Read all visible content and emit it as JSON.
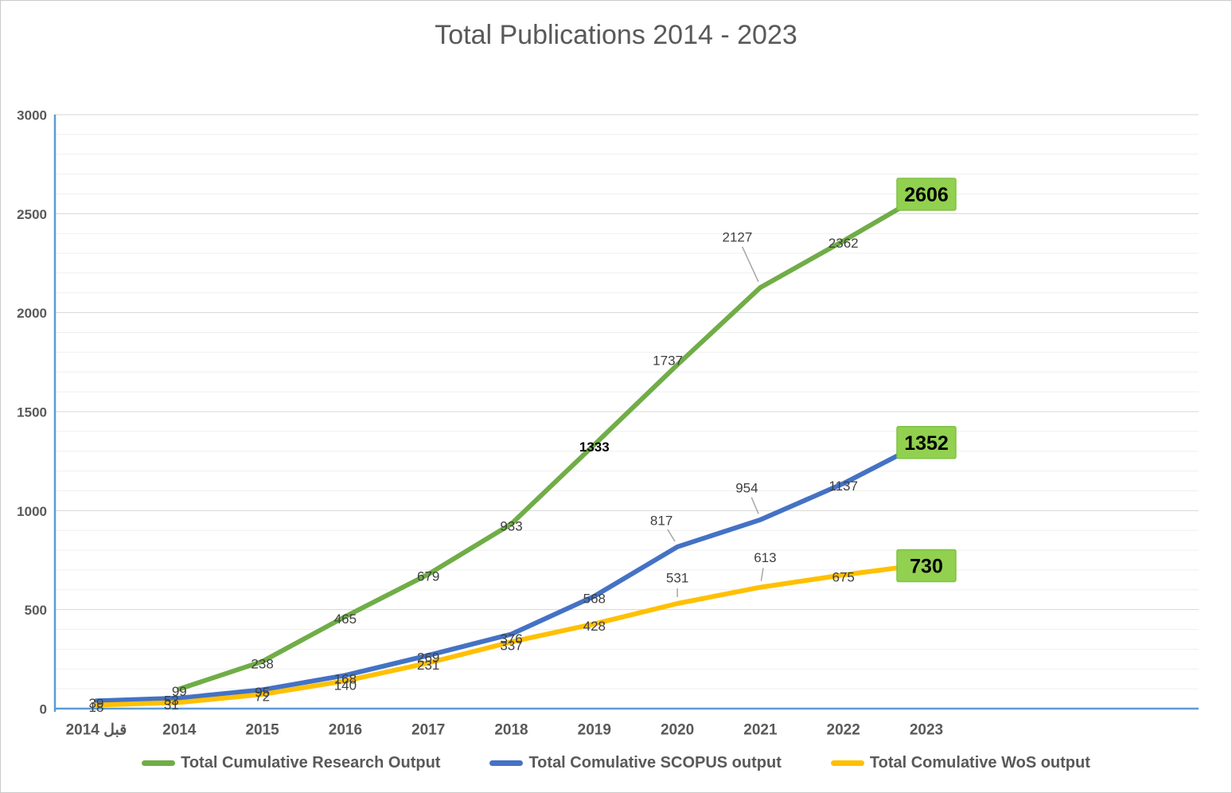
{
  "title": "Total Publications 2014 - 2023",
  "colors": {
    "title_text": "#595959",
    "axis_line": "#5B9BD5",
    "axis_text": "#595959",
    "label_text": "#404040",
    "grid_minor": "#EFEFEF",
    "grid_major": "#D7D7D7",
    "leader_line": "#A6A6A6",
    "callout_fill": "#92D050",
    "callout_border": "#7EC242",
    "callout_text": "#000000",
    "background": "#FFFFFF",
    "border": "#C9C9C9"
  },
  "chart_data": {
    "type": "line",
    "title": "Total Publications 2014 - 2023",
    "categories": [
      "قبل 2014",
      "2014",
      "2015",
      "2016",
      "2017",
      "2018",
      "2019",
      "2020",
      "2021",
      "2022",
      "2023"
    ],
    "ylim": [
      0,
      3000
    ],
    "yticks": [
      0,
      500,
      1000,
      1500,
      2000,
      2500,
      3000
    ],
    "minor_grid_step": 100,
    "grid": true,
    "legend_position": "bottom",
    "series": [
      {
        "name": "Total Cumulative Research Output",
        "color": "#70AD47",
        "values": [
          null,
          99,
          238,
          465,
          679,
          933,
          1333,
          1737,
          2127,
          2362,
          2606
        ],
        "labels": [
          null,
          {},
          {},
          {},
          {},
          {},
          {
            "bold": true
          },
          {
            "dx": -12,
            "dy": -5
          },
          {
            "dx": -29,
            "dy": -63,
            "leader": true
          },
          {},
          {
            "boxed": true
          }
        ]
      },
      {
        "name": "Total Comulative SCOPUS output",
        "color": "#4472C4",
        "values": [
          39,
          53,
          95,
          168,
          269,
          376,
          568,
          817,
          954,
          1137,
          1352
        ],
        "labels": [
          {},
          {
            "dx": -10
          },
          {},
          {
            "dy": 5
          },
          {},
          {
            "dy": 6
          },
          {},
          {
            "dx": -20,
            "dy": -33,
            "leader": true
          },
          {
            "dx": -17,
            "dy": -40,
            "leader": true
          },
          {},
          {
            "boxed": true
          }
        ]
      },
      {
        "name": "Total Comulative WoS output",
        "color": "#FFC000",
        "values": [
          18,
          31,
          72,
          140,
          231,
          337,
          428,
          531,
          613,
          675,
          730
        ],
        "labels": [
          {},
          {
            "dx": -10
          },
          {},
          {
            "dy": 6
          },
          {},
          {
            "dy": 5
          },
          {},
          {
            "dy": -32,
            "leader": true
          },
          {
            "dx": 6,
            "dy": -37,
            "leader": true
          },
          {},
          {
            "boxed": true
          }
        ]
      }
    ]
  }
}
